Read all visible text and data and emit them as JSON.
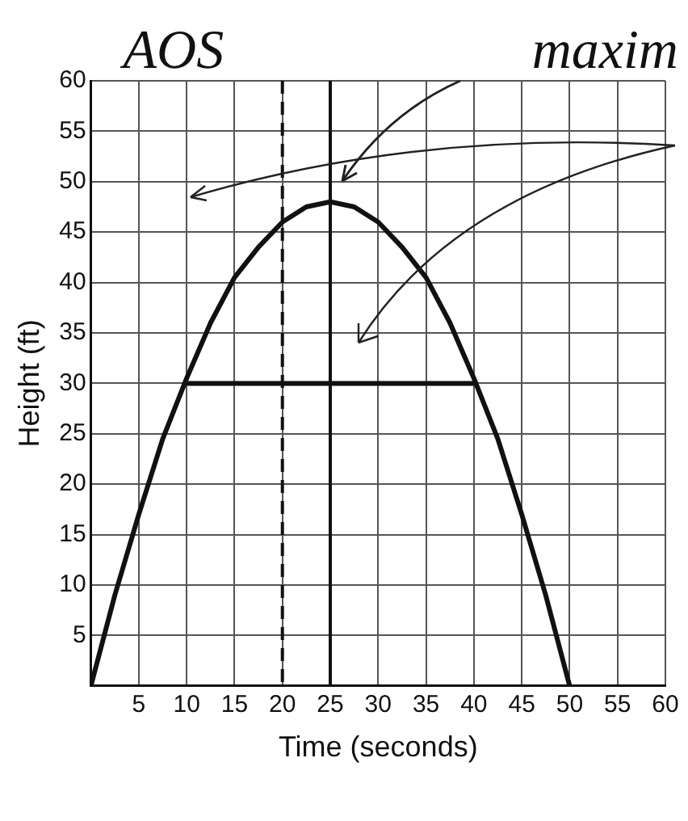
{
  "chart_data": {
    "type": "line",
    "xlabel": "Time (seconds)",
    "ylabel": "Height (ft)",
    "annotations": [
      "AOS",
      "maxim"
    ],
    "series": [
      {
        "color": "#111111",
        "x": [
          0,
          2.5,
          5,
          7.5,
          10,
          12.5,
          15,
          17.5,
          20,
          22.5,
          25,
          27.5,
          30,
          32.5,
          35,
          37.5,
          40,
          42.5,
          45,
          47.5,
          50
        ],
        "values": [
          0,
          9,
          17,
          24.5,
          30.5,
          36,
          40.5,
          43.5,
          46,
          47.5,
          48,
          47.5,
          46,
          43.5,
          40.5,
          36,
          30.5,
          24.5,
          17,
          9,
          0
        ]
      },
      {
        "color": "#111111",
        "x": [
          10,
          40
        ],
        "values": [
          30,
          30
        ]
      }
    ],
    "ref_lines": [
      {
        "axis": "x",
        "value": 25
      },
      {
        "axis": "x",
        "value": 20,
        "line_style": "dashed"
      }
    ],
    "xlim": [
      0,
      60
    ],
    "xticks": [
      5,
      10,
      15,
      20,
      25,
      30,
      35,
      40,
      45,
      50,
      55,
      60
    ],
    "ylim": [
      0,
      60
    ],
    "yticks": [
      5,
      10,
      15,
      20,
      25,
      30,
      35,
      40,
      45,
      50,
      55,
      60
    ],
    "grid": true,
    "legend": false,
    "marker": "none",
    "line_style": "solid"
  }
}
